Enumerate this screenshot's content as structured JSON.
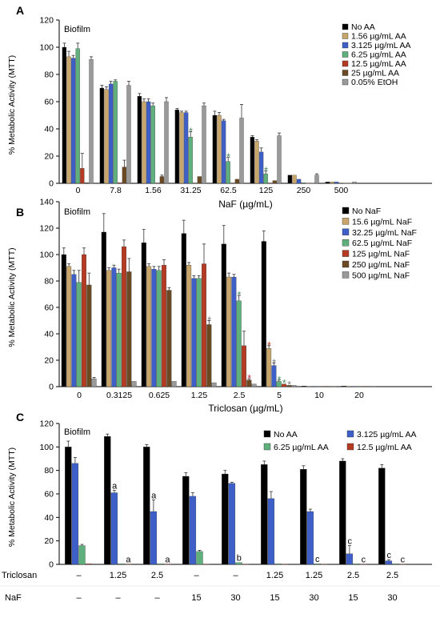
{
  "figure": {
    "panels": [
      {
        "letter": "A",
        "inner_label": "Biofilm"
      },
      {
        "letter": "B",
        "inner_label": "Biofilm"
      },
      {
        "letter": "C",
        "inner_label": "Biofilm"
      }
    ]
  },
  "colors": {
    "black": "#000000",
    "tan": "#c8a56a",
    "blue": "#3d5fc7",
    "green": "#5fb07c",
    "red": "#b53a22",
    "brown": "#6b4a23",
    "gray": "#9a9a9a",
    "asterisk": "#4a8a5e",
    "asterisk_red": "#c0304d"
  },
  "chart_data": [
    {
      "type": "bar",
      "panel": "A",
      "xlabel": "NaF (µg/mL)",
      "ylabel": "% Metabolic Activity (MTT)",
      "ylim": [
        0,
        120
      ],
      "yticks": [
        0,
        20,
        40,
        60,
        80,
        100,
        120
      ],
      "categories": [
        "0",
        "7.8",
        "1.56",
        "31.25",
        "62.5",
        "125",
        "250",
        "500"
      ],
      "legend_position": "top-right",
      "series": [
        {
          "name": "No AA",
          "color": "#000000",
          "values": [
            100,
            70,
            64,
            54,
            50,
            34,
            6,
            1
          ],
          "errors": [
            3,
            2,
            2,
            1,
            3,
            1,
            0.5,
            0.3
          ]
        },
        {
          "name": "1.56 µg/mL AA",
          "color": "#c8a56a",
          "values": [
            93,
            69,
            60,
            52,
            50,
            31,
            6,
            1
          ],
          "errors": [
            4,
            2,
            2,
            1,
            2,
            1,
            0.5,
            0.3
          ]
        },
        {
          "name": "3.125 µg/mL AA",
          "color": "#3d5fc7",
          "values": [
            92,
            73,
            60,
            52,
            46,
            23,
            3,
            1
          ],
          "errors": [
            2,
            2,
            2,
            1,
            1,
            3,
            0.5,
            0.3
          ]
        },
        {
          "name": "6.25 µg/mL AA",
          "color": "#5fb07c",
          "values": [
            99,
            75,
            57,
            34,
            16,
            7,
            0.5,
            0.3
          ],
          "errors": [
            4,
            1,
            2,
            4,
            3,
            2,
            0.2,
            0.1
          ]
        },
        {
          "name": "12.5 µg/mL AA",
          "color": "#b53a22",
          "values": [
            11,
            0.5,
            0.3,
            0.3,
            0.3,
            0.3,
            0.2,
            0.2
          ],
          "errors": [
            11,
            0.2,
            0.1,
            0.1,
            0.1,
            0.1,
            0.1,
            0.1
          ]
        },
        {
          "name": "25 µg/mL AA",
          "color": "#6b4a23",
          "values": [
            0.5,
            12,
            5,
            5,
            3,
            2,
            0.2,
            0.2
          ],
          "errors": [
            0.2,
            5,
            1,
            0.5,
            0.5,
            0.5,
            0.1,
            0.1
          ]
        },
        {
          "name": "0.05% EtOH",
          "color": "#9a9a9a",
          "values": [
            91,
            72,
            60,
            57,
            48,
            35,
            6,
            1
          ],
          "errors": [
            2,
            3,
            3,
            2,
            10,
            2,
            1,
            0.3
          ]
        }
      ],
      "annotations": [
        {
          "text": "*",
          "category": "31.25",
          "series": "6.25 µg/mL AA"
        },
        {
          "text": "*",
          "category": "62.5",
          "series": "6.25 µg/mL AA"
        },
        {
          "text": "*",
          "category": "125",
          "series": "6.25 µg/mL AA"
        }
      ]
    },
    {
      "type": "bar",
      "panel": "B",
      "xlabel": "Triclosan (µg/mL)",
      "ylabel": "% Metabolic Activity (MTT)",
      "ylim": [
        0,
        140
      ],
      "yticks": [
        0,
        20,
        40,
        60,
        80,
        100,
        120,
        140
      ],
      "categories": [
        "0",
        "0.3125",
        "0.625",
        "1.25",
        "2.5",
        "5",
        "10",
        "20"
      ],
      "legend_position": "top-right",
      "series": [
        {
          "name": "No NaF",
          "color": "#000000",
          "values": [
            100,
            117,
            109,
            116,
            108,
            110,
            0.5,
            0.5
          ],
          "errors": [
            5,
            14,
            10,
            10,
            14,
            8,
            0.2,
            0.2
          ]
        },
        {
          "name": "15.6 µg/mL NaF",
          "color": "#c8a56a",
          "values": [
            91,
            88,
            91,
            92,
            83,
            29,
            0.3,
            0.3
          ],
          "errors": [
            2,
            2,
            2,
            2,
            3,
            2,
            0.1,
            0.1
          ]
        },
        {
          "name": "32.25 µg/mL NaF",
          "color": "#3d5fc7",
          "values": [
            85,
            90,
            89,
            82,
            83,
            16,
            0.3,
            0.3
          ],
          "errors": [
            3,
            2,
            2,
            2,
            2,
            2,
            0.1,
            0.1
          ]
        },
        {
          "name": "62.5 µg/mL NaF",
          "color": "#5fb07c",
          "values": [
            79,
            86,
            88,
            82,
            65,
            4,
            0.3,
            0.3
          ],
          "errors": [
            9,
            3,
            3,
            2,
            4,
            1,
            0.1,
            0.1
          ]
        },
        {
          "name": "125 µg/mL NaF",
          "color": "#b53a22",
          "values": [
            100,
            106,
            92,
            93,
            31,
            2,
            0.3,
            0.3
          ],
          "errors": [
            5,
            5,
            4,
            15,
            11,
            0.5,
            0.1,
            0.1
          ]
        },
        {
          "name": "250 µg/mL NaF",
          "color": "#6b4a23",
          "values": [
            77,
            87,
            73,
            47,
            5,
            1,
            0.3,
            0.3
          ],
          "errors": [
            9,
            10,
            2,
            3,
            1,
            0.3,
            0.1,
            0.1
          ]
        },
        {
          "name": "500 µg/mL NaF",
          "color": "#9a9a9a",
          "values": [
            6,
            4,
            4,
            3,
            2,
            1,
            0.3,
            0.3
          ],
          "errors": [
            1,
            0.5,
            0.5,
            0.5,
            0.5,
            0.3,
            0.1,
            0.1
          ]
        }
      ],
      "annotations": [
        {
          "text": "*",
          "category": "1.25",
          "series": "250 µg/mL NaF",
          "color": "#7a7a7a"
        },
        {
          "text": "*",
          "category": "2.5",
          "series": "62.5 µg/mL NaF",
          "color": "#4a8a5e"
        },
        {
          "text": "*",
          "category": "2.5",
          "series": "250 µg/mL NaF",
          "color": "#c0304d"
        },
        {
          "text": "*",
          "category": "5",
          "series": "15.6 µg/mL NaF",
          "color": "#b53a22"
        },
        {
          "text": "*",
          "category": "5",
          "series": "32.25 µg/mL NaF",
          "color": "#7a7a7a"
        },
        {
          "text": "*",
          "category": "5",
          "series": "62.5 µg/mL NaF",
          "color": "#4a8a5e"
        },
        {
          "text": "*",
          "category": "5",
          "series": "125 µg/mL NaF",
          "color": "#4a8a5e"
        },
        {
          "text": "*",
          "category": "5",
          "series": "250 µg/mL NaF",
          "color": "#7a7a7a"
        }
      ]
    },
    {
      "type": "bar",
      "panel": "C",
      "ylabel": "% Metabolic Activity (MTT)",
      "ylim": [
        0,
        120
      ],
      "yticks": [
        0,
        20,
        40,
        60,
        80,
        100,
        120
      ],
      "row_labels": [
        "Triclosan",
        "NaF"
      ],
      "triclosan_row": [
        "–",
        "1.25",
        "2.5",
        "–",
        "–",
        "1.25",
        "1.25",
        "2.5",
        "2.5"
      ],
      "naf_row": [
        "–",
        "–",
        "–",
        "15",
        "30",
        "15",
        "30",
        "15",
        "30"
      ],
      "legend_position": "top-right",
      "series": [
        {
          "name": "No AA",
          "color": "#000000",
          "values": [
            100,
            109,
            100,
            75,
            77,
            85,
            81,
            88,
            82
          ],
          "errors": [
            5,
            2,
            2,
            3,
            3,
            3,
            3,
            2,
            3
          ]
        },
        {
          "name": "3.125 µg/mL AA",
          "color": "#3d5fc7",
          "values": [
            86,
            61,
            45,
            58,
            69,
            56,
            45,
            9,
            3
          ],
          "errors": [
            5,
            2,
            10,
            3,
            1,
            6,
            2,
            7,
            1
          ]
        },
        {
          "name": "6.25  µg/mL AA",
          "color": "#5fb07c",
          "values": [
            16,
            0.5,
            0.5,
            11,
            1.5,
            0.5,
            0.5,
            0.5,
            0.5
          ],
          "errors": [
            1,
            0.2,
            0.2,
            1,
            0.3,
            0.2,
            0.2,
            0.2,
            0.2
          ]
        },
        {
          "name": "12.5  µg/mL AA",
          "color": "#b53a22",
          "values": [
            0.5,
            0.3,
            0.3,
            0.3,
            0.3,
            0.3,
            0.3,
            0.3,
            0.3
          ],
          "errors": [
            0.1,
            0.1,
            0.1,
            0.1,
            0.1,
            0.1,
            0.1,
            0.1,
            0.1
          ]
        }
      ],
      "annotations": [
        {
          "text": "a",
          "group": 1,
          "series": "3.125 µg/mL AA"
        },
        {
          "text": "a",
          "group": 1,
          "series": "12.5  µg/mL AA"
        },
        {
          "text": "a",
          "group": 2,
          "series": "3.125 µg/mL AA"
        },
        {
          "text": "a",
          "group": 2,
          "series": "12.5  µg/mL AA"
        },
        {
          "text": "b",
          "group": 4,
          "series": "6.25  µg/mL AA"
        },
        {
          "text": "c",
          "group": 6,
          "series": "6.25  µg/mL AA"
        },
        {
          "text": "c",
          "group": 7,
          "series": "3.125 µg/mL AA"
        },
        {
          "text": "c",
          "group": 7,
          "series": "12.5  µg/mL AA"
        },
        {
          "text": "c",
          "group": 8,
          "series": "3.125 µg/mL AA"
        },
        {
          "text": "c",
          "group": 8,
          "series": "12.5  µg/mL AA"
        }
      ]
    }
  ]
}
